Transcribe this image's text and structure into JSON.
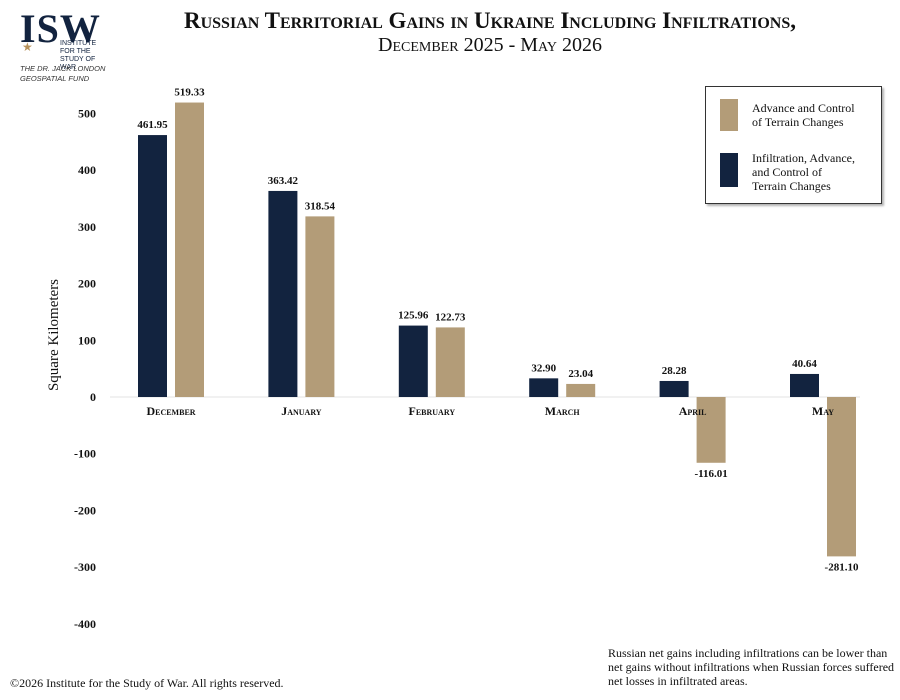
{
  "header": {
    "logo_text": "ISW",
    "logo_subtext": "INSTITUTE FOR THE\nSTUDY OF WAR",
    "fund_text": "The Dr. Jack London Geospatial Fund"
  },
  "footnote": "Russian net gains including infiltrations can be lower than net gains without infiltrations when Russian forces suffered net losses in infiltrated areas.",
  "copyright": "©2026 Institute for the Study of War. All rights reserved.",
  "colors": {
    "navy": "#12233f",
    "tan": "#b39c78"
  },
  "chart_data": {
    "type": "bar",
    "title": "Russian Territorial Gains in Ukraine Including Infiltrations,",
    "subtitle": "December 2025 - May 2026",
    "ylabel": "Square Kilometers",
    "xlabel": "",
    "ylim": [
      -400,
      500
    ],
    "yticks": [
      500,
      400,
      300,
      200,
      100,
      0,
      -100,
      -200,
      -300,
      -400
    ],
    "categories": [
      "December",
      "January",
      "February",
      "March",
      "April",
      "May"
    ],
    "series": [
      {
        "name": "Infiltration, Advance, and Control of Terrain Changes",
        "color": "#12233f",
        "values": [
          461.95,
          363.42,
          125.96,
          32.9,
          28.28,
          40.64
        ],
        "labels": [
          "461.95",
          "363.42",
          "125.96",
          "32.90",
          "28.28",
          "40.64"
        ]
      },
      {
        "name": "Advance and Control of Terrain Changes",
        "color": "#b39c78",
        "values": [
          519.33,
          318.54,
          122.73,
          23.04,
          -116.01,
          -281.1
        ],
        "labels": [
          "519.33",
          "318.54",
          "122.73",
          "23.04",
          "-116.01",
          "-281.10"
        ]
      }
    ],
    "legend": [
      {
        "label": "Advance and Control\nof Terrain Changes",
        "color": "#b39c78"
      },
      {
        "label": "Infiltration, Advance,\nand Control of\nTerrain Changes",
        "color": "#12233f"
      }
    ],
    "legend_position": "top-right",
    "grid": false
  }
}
